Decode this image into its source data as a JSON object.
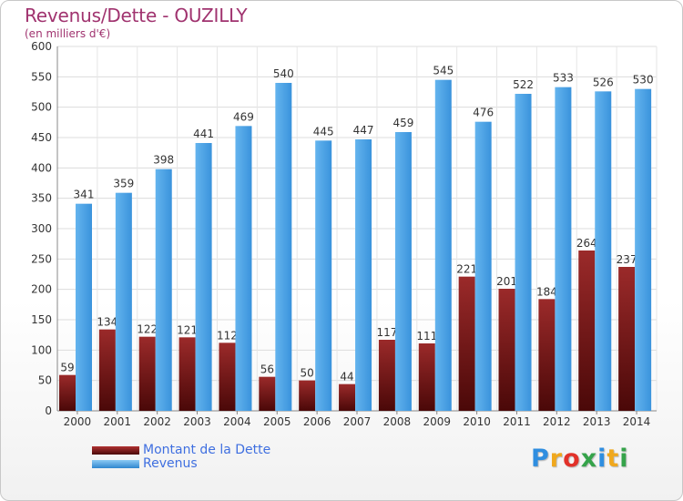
{
  "chart_data": {
    "type": "bar",
    "title": "Revenus/Dette - OUZILLY",
    "subtitle": "(en milliers d'€)",
    "categories": [
      "2000",
      "2001",
      "2002",
      "2003",
      "2004",
      "2005",
      "2006",
      "2007",
      "2008",
      "2009",
      "2010",
      "2011",
      "2012",
      "2013",
      "2014"
    ],
    "series": [
      {
        "name": "Montant de la Dette",
        "color": "#7b1c1c",
        "values": [
          59,
          134,
          122,
          121,
          112,
          56,
          50,
          44,
          117,
          111,
          221,
          201,
          184,
          264,
          237
        ],
        "labels": [
          "59",
          "134",
          "122",
          "121",
          "112",
          "56",
          "50",
          "44",
          "117",
          "111",
          "221",
          "201",
          "184",
          "264",
          "237"
        ]
      },
      {
        "name": "Revenus",
        "color": "#4da3e6",
        "values": [
          341,
          359,
          398,
          441,
          469,
          540,
          445,
          447,
          459,
          545,
          476,
          522,
          533,
          526,
          530
        ],
        "labels": [
          "341",
          "359",
          "398",
          "441",
          "469",
          "540",
          "445",
          "447",
          "459",
          "545",
          "476",
          "522",
          "533",
          "526",
          "530"
        ]
      }
    ],
    "yticks": [
      "0",
      "50",
      "100",
      "150",
      "200",
      "250",
      "300",
      "350",
      "400",
      "450",
      "500",
      "550",
      "600"
    ],
    "ylim": [
      0,
      600
    ],
    "grid": true,
    "legend_position": "bottom-left"
  },
  "legend": {
    "debt_label": "Montant de la Dette",
    "revenue_label": "Revenus"
  },
  "logo": {
    "letters": [
      "P",
      "r",
      "o",
      "x",
      "i",
      "t",
      "i"
    ],
    "colors": [
      "#2f8ee0",
      "#f0a81d",
      "#e2322a",
      "#35a34a",
      "#2f8ee0",
      "#f0a81d",
      "#35a34a"
    ]
  }
}
